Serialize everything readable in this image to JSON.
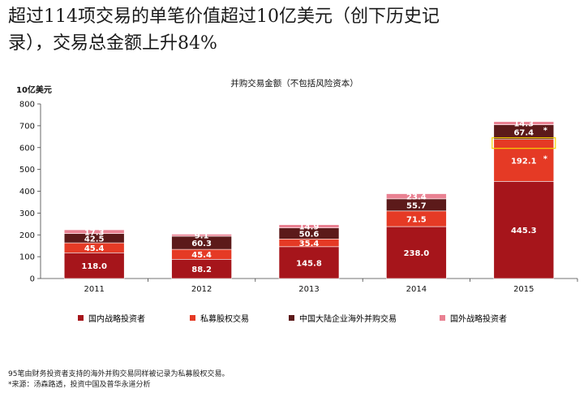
{
  "headline": {
    "line1": "超过114项交易的单笔价值超过10亿美元（创下历史记",
    "line2": "录），交易总金额上升84%"
  },
  "chart_data": {
    "type": "bar",
    "stacked": true,
    "title": "并购交易金额（不包括风险资本）",
    "ylabel": "10亿美元",
    "ylim": [
      0,
      800
    ],
    "yticks": [
      0,
      100,
      200,
      300,
      400,
      500,
      600,
      700,
      800
    ],
    "categories": [
      "2011",
      "2012",
      "2013",
      "2014",
      "2015"
    ],
    "series": [
      {
        "name": "国内战略投资者",
        "color": "#a6151b",
        "values": [
          118.0,
          88.2,
          145.8,
          238.0,
          445.3
        ]
      },
      {
        "name": "私募股权交易",
        "color": "#e53a25",
        "values": [
          45.4,
          45.4,
          35.4,
          71.5,
          192.1
        ]
      },
      {
        "name": "中国大陆企业海外并购交易",
        "color": "#5c1a1a",
        "values": [
          42.5,
          60.3,
          50.6,
          55.7,
          67.4
        ]
      },
      {
        "name": "国外战略投资者",
        "color": "#e98192",
        "values": [
          17.3,
          9.1,
          14.9,
          23.4,
          14.3
        ]
      }
    ],
    "labels": [
      [
        "118.0",
        "88.2",
        "145.8",
        "238.0",
        "445.3"
      ],
      [
        "45.4",
        "45.4",
        "35.4",
        "71.5",
        "192.1"
      ],
      [
        "42.5",
        "60.3",
        "50.6",
        "55.7",
        "67.4"
      ],
      [
        "17.3",
        "9.1",
        "14.9",
        "23.4",
        "14.3"
      ]
    ],
    "asterisks": [
      {
        "category": "2015",
        "series": "私募股权交易",
        "text": "*"
      },
      {
        "category": "2015",
        "series": "中国大陆企业海外并购交易",
        "text": "*"
      }
    ],
    "highlight_color": "#f5d400",
    "grid": false,
    "legend_position": "bottom"
  },
  "notes": {
    "footnote": "95笔由财务投资者支持的海外并购交易同样被记录为私募股权交易。",
    "source": "*来源：汤森路透，投资中国及普华永道分析"
  }
}
